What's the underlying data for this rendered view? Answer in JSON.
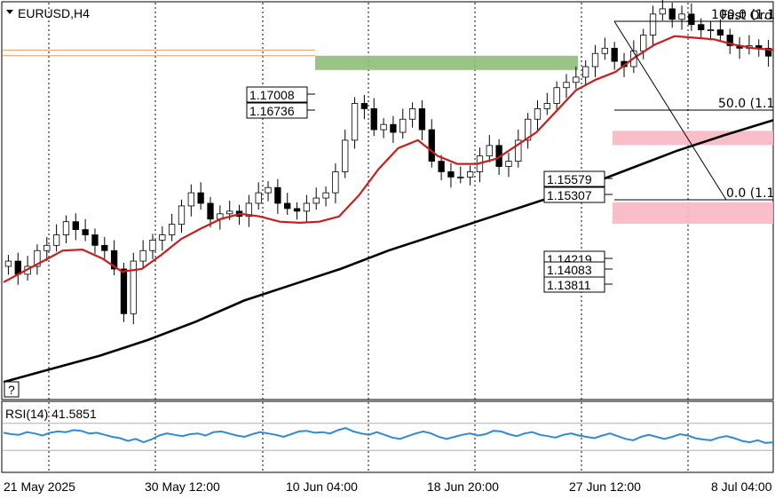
{
  "chart_data": [
    {
      "type": "candlestick",
      "title": "EURUSD,H4",
      "x_tick_labels": [
        "21 May 2025",
        "30 May 12:00",
        "10 Jun 04:00",
        "18 Jun 20:00",
        "27 Jun 12:00",
        "8 Jul 04:00"
      ],
      "ylim": [
        1.105,
        1.18
      ],
      "price_close_samples": [
        1.131,
        1.1285,
        1.13,
        1.133,
        1.134,
        1.136,
        1.1385,
        1.137,
        1.136,
        1.134,
        1.133,
        1.1295,
        1.121,
        1.131,
        1.133,
        1.135,
        1.136,
        1.138,
        1.1415,
        1.144,
        1.142,
        1.139,
        1.14,
        1.1405,
        1.1395,
        1.142,
        1.144,
        1.145,
        1.142,
        1.141,
        1.1405,
        1.142,
        1.143,
        1.144,
        1.148,
        1.154,
        1.161,
        1.16,
        1.156,
        1.157,
        1.1555,
        1.158,
        1.16,
        1.156,
        1.15,
        1.148,
        1.147,
        1.147,
        1.148,
        1.151,
        1.153,
        1.149,
        1.15,
        1.154,
        1.158,
        1.16,
        1.161,
        1.164,
        1.165,
        1.166,
        1.168,
        1.1705,
        1.1715,
        1.169,
        1.168,
        1.171,
        1.174,
        1.178,
        1.179,
        1.177,
        1.178,
        1.176,
        1.175,
        1.175,
        1.174,
        1.172,
        1.1715,
        1.172,
        1.1715,
        1.17
      ],
      "series": [
        {
          "name": "",
          "color": "#c81e1e",
          "values": [
            1.127,
            1.129,
            1.131,
            1.133,
            1.1332,
            1.1315,
            1.129,
            1.1295,
            1.1322,
            1.1352,
            1.1372,
            1.139,
            1.14,
            1.1395,
            1.1385,
            1.1383,
            1.1385,
            1.1395,
            1.1435,
            1.1485,
            1.1525,
            1.154,
            1.151,
            1.1495,
            1.1495,
            1.1505,
            1.153,
            1.1555,
            1.1595,
            1.1635,
            1.1655,
            1.167,
            1.1698,
            1.1722,
            1.1738,
            1.1735,
            1.1732,
            1.1722,
            1.1715,
            1.1712
          ]
        },
        {
          "name": "",
          "color": "#000000",
          "values": [
            1.108,
            1.1105,
            1.113,
            1.116,
            1.1195,
            1.1235,
            1.1265,
            1.1295,
            1.133,
            1.136,
            1.139,
            1.142,
            1.145,
            1.1485,
            1.152,
            1.155,
            1.1578
          ]
        }
      ],
      "price_labels": [
        "1.17008",
        "1.16736",
        "1.15579",
        "1.15307",
        "1.14219",
        "1.14083",
        "1.13811"
      ],
      "zones": [
        {
          "from": 1.16736,
          "to": 1.17008,
          "color": "#8fbc7a"
        },
        {
          "from": 1.15307,
          "to": 1.15579,
          "color": "#f7b8c4"
        },
        {
          "from": 1.13811,
          "to": 1.14219,
          "color": "#f7b8c4"
        }
      ],
      "horizontal_levels": [
        {
          "value": 1.17115,
          "color": "#e89a6a"
        },
        {
          "value": 1.17008,
          "color": "#e89a6a"
        }
      ],
      "fibonacci": {
        "labels": [
          "100.0 (1.1",
          "50.0 (1.1",
          "0.0 (1.1"
        ],
        "overlay_text": "Fast Ord"
      },
      "corner_marker": "?"
    },
    {
      "type": "line",
      "title": "RSI(14) 41.5851",
      "ylim": [
        0,
        100
      ],
      "levels": [
        70,
        30
      ],
      "series": [
        {
          "name": "",
          "color": "#2e8bd6",
          "values": [
            56,
            54,
            53,
            57,
            55,
            52,
            56,
            58,
            57,
            60,
            59,
            55,
            56,
            53,
            50,
            48,
            44,
            47,
            42,
            46,
            52,
            55,
            53,
            51,
            54,
            55,
            52,
            57,
            58,
            55,
            52,
            50,
            54,
            57,
            55,
            53,
            50,
            54,
            58,
            59,
            56,
            57,
            55,
            60,
            63,
            58,
            55,
            53,
            57,
            53,
            49,
            47,
            51,
            55,
            58,
            55,
            50,
            47,
            50,
            53,
            55,
            52,
            54,
            59,
            58,
            54,
            51,
            55,
            57,
            53,
            51,
            49,
            53,
            55,
            52,
            50,
            48,
            52,
            55,
            51,
            47,
            45,
            50,
            53,
            50,
            47,
            50,
            54,
            52,
            48,
            46,
            45,
            49,
            51,
            48,
            44,
            42,
            45,
            41,
            42
          ]
        }
      ]
    }
  ]
}
